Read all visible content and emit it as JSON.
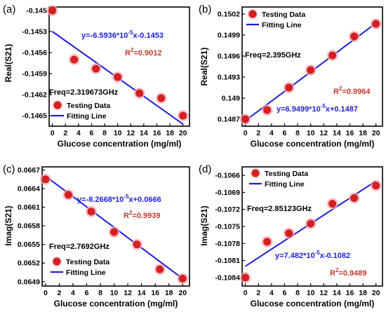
{
  "chart_data": [
    {
      "type": "scatter",
      "panel_label": "(a)",
      "xlabel": "Glucose concentration (mg/ml)",
      "ylabel": "Real(S21)",
      "xticks": [
        "0",
        "2",
        "4",
        "6",
        "8",
        "10",
        "12",
        "14",
        "16",
        "18",
        "20"
      ],
      "yticks": [
        "-0.145",
        "-0.1453",
        "-0.1456",
        "-0.1459",
        "-0.1462",
        "-0.1465"
      ],
      "xlim": [
        -0.5,
        21
      ],
      "ylim": [
        -0.14665,
        -0.14495
      ],
      "series": [
        {
          "name": "Testing Data",
          "x": [
            0,
            3.33,
            6.67,
            10,
            13.33,
            16.67,
            20
          ],
          "y": [
            -0.145,
            -0.1457,
            -0.14583,
            -0.14595,
            -0.14618,
            -0.14625,
            -0.1465
          ]
        },
        {
          "name": "Fitting Line",
          "x": [
            0,
            20
          ],
          "y": [
            -0.1453,
            -0.14662
          ]
        }
      ],
      "legend_position": "bottom-left",
      "annotations": {
        "equation": "y=-6.5936*10",
        "equation_exp": "-5",
        "equation_rest": "x-0.1453",
        "r2": "R",
        "r2_exp": "2",
        "r2_rest": "=0.9012",
        "freq": "Freq=2.319673GHz"
      }
    },
    {
      "type": "scatter",
      "panel_label": "(b)",
      "xlabel": "Glucose concentration (mg/ml)",
      "ylabel": "Real(S21)",
      "xticks": [
        "0",
        "2",
        "4",
        "6",
        "8",
        "10",
        "12",
        "14",
        "16",
        "18",
        "20"
      ],
      "yticks": [
        "0.1502",
        "0.1499",
        "0.1496",
        "0.1493",
        "0.149",
        "0.1487"
      ],
      "xlim": [
        -0.5,
        21
      ],
      "ylim": [
        0.1486,
        0.1503
      ],
      "series": [
        {
          "name": "Testing Data",
          "x": [
            0,
            3.33,
            6.67,
            10,
            13.33,
            16.67,
            20
          ],
          "y": [
            0.1487,
            0.14883,
            0.14915,
            0.1494,
            0.14961,
            0.14988,
            0.15006
          ]
        },
        {
          "name": "Fitting Line",
          "x": [
            0,
            20
          ],
          "y": [
            0.14868,
            0.15007
          ]
        }
      ],
      "legend_position": "top-left",
      "annotations": {
        "equation": "y=6.9499*10",
        "equation_exp": "-5",
        "equation_rest": "x+0.1487",
        "r2": "R",
        "r2_exp": "2",
        "r2_rest": "=0.9964",
        "freq": "Freq=2.395GHz"
      }
    },
    {
      "type": "scatter",
      "panel_label": "(c)",
      "xlabel": "Glucose concentration (mg/ml)",
      "ylabel": "Imag(S21)",
      "xticks": [
        "0",
        "2",
        "4",
        "6",
        "8",
        "10",
        "12",
        "14",
        "16",
        "18",
        "20"
      ],
      "yticks": [
        "0.0667",
        "0.0664",
        "0.0661",
        "0.0658",
        "0.0655",
        "0.0652",
        "0.0649"
      ],
      "xlim": [
        -0.5,
        21
      ],
      "ylim": [
        0.06483,
        0.06675
      ],
      "series": [
        {
          "name": "Testing Data",
          "x": [
            0,
            3.33,
            6.67,
            10,
            13.33,
            16.67,
            20
          ],
          "y": [
            0.06655,
            0.0663,
            0.06603,
            0.0657,
            0.0655,
            0.0651,
            0.06495
          ]
        },
        {
          "name": "Fitting Line",
          "x": [
            0,
            20
          ],
          "y": [
            0.0666,
            0.06495
          ]
        }
      ],
      "legend_position": "bottom-left",
      "annotations": {
        "equation": "y=-8.2668*10",
        "equation_exp": "-5",
        "equation_rest": "x+0.0666",
        "r2": "R",
        "r2_exp": "2",
        "r2_rest": "=0.9939",
        "freq": "Freq=2.7692GHz"
      }
    },
    {
      "type": "scatter",
      "panel_label": "(d)",
      "xlabel": "Glucose concentration (mg/ml)",
      "ylabel": "Imag(S21)",
      "xticks": [
        "0",
        "2",
        "4",
        "6",
        "8",
        "10",
        "12",
        "14",
        "16",
        "18",
        "20"
      ],
      "yticks": [
        "-0.1066",
        "-0.1069",
        "-0.1072",
        "-0.1075",
        "-0.1078",
        "-0.1081",
        "-0.1084"
      ],
      "xlim": [
        -0.5,
        21
      ],
      "ylim": [
        -0.10855,
        -0.10645
      ],
      "series": [
        {
          "name": "Testing Data",
          "x": [
            0,
            3.33,
            6.67,
            10,
            13.33,
            16.67,
            20
          ],
          "y": [
            -0.1084,
            -0.10777,
            -0.10762,
            -0.10745,
            -0.1071,
            -0.107,
            -0.10678
          ]
        },
        {
          "name": "Fitting Line",
          "x": [
            0,
            20
          ],
          "y": [
            -0.1082,
            -0.1067
          ]
        }
      ],
      "legend_position": "top-left",
      "annotations": {
        "equation": "y=7.482*10",
        "equation_exp": "-5",
        "equation_rest": "x-0.1082",
        "r2": "R",
        "r2_exp": "2",
        "r2_rest": "=0.9489",
        "freq": "Freq=2.85123GHz"
      }
    }
  ],
  "colors": {
    "marker": "#d42020",
    "marker_glow": "#f2a6b4",
    "line": "#1f1fd6",
    "equation": "#1f1fd6",
    "r2": "#c0392b"
  }
}
